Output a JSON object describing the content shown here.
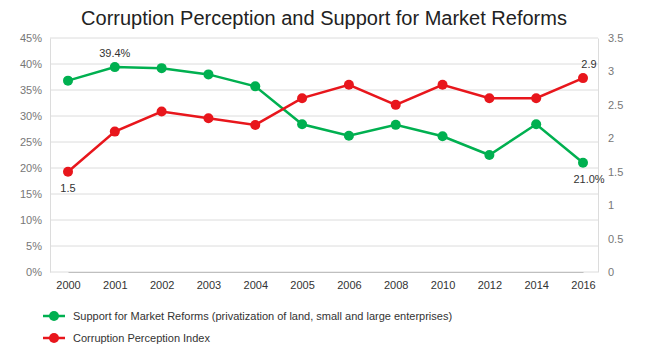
{
  "chart_data": {
    "type": "line",
    "title": "Corruption Perception and Support for Market Reforms",
    "categories": [
      "2000",
      "2001",
      "2002",
      "2003",
      "2004",
      "2005",
      "2006",
      "2008",
      "2010",
      "2012",
      "2014",
      "2016"
    ],
    "series": [
      {
        "name": "Support for Market Reforms (privatization of land, small and large enterprises)",
        "color": "#00b050",
        "marker": "circle",
        "values": [
          36.8,
          39.4,
          39.2,
          38.0,
          35.7,
          28.4,
          26.2,
          28.3,
          26.1,
          22.5,
          28.4,
          21.0
        ],
        "value_labels": [
          null,
          "39.4%",
          null,
          null,
          null,
          null,
          null,
          null,
          null,
          null,
          null,
          "21.0%"
        ]
      },
      {
        "name": "Corruption Perception Index",
        "color": "#e8161c",
        "marker": "circle",
        "axis": "y2",
        "values": [
          1.5,
          2.1,
          2.4,
          2.3,
          2.2,
          2.6,
          2.8,
          2.5,
          2.8,
          2.6,
          2.6,
          2.9
        ],
        "value_labels": [
          "1.5",
          null,
          null,
          null,
          null,
          null,
          null,
          null,
          null,
          null,
          null,
          "2.9"
        ]
      }
    ],
    "ylim": [
      0,
      45
    ],
    "yticks": [
      {
        "value": 0,
        "label": "0%"
      },
      {
        "value": 5,
        "label": "5%"
      },
      {
        "value": 10,
        "label": "10%"
      },
      {
        "value": 15,
        "label": "15%"
      },
      {
        "value": 20,
        "label": "20%"
      },
      {
        "value": 25,
        "label": "25%"
      },
      {
        "value": 30,
        "label": "30%"
      },
      {
        "value": 35,
        "label": "35%"
      },
      {
        "value": 40,
        "label": "40%"
      },
      {
        "value": 45,
        "label": "45%"
      }
    ],
    "y2lim": [
      0,
      3.5
    ],
    "y2ticks": [
      0,
      0.5,
      1,
      1.5,
      2,
      2.5,
      3,
      3.5
    ],
    "grid": true,
    "legend": "bottom-left"
  }
}
